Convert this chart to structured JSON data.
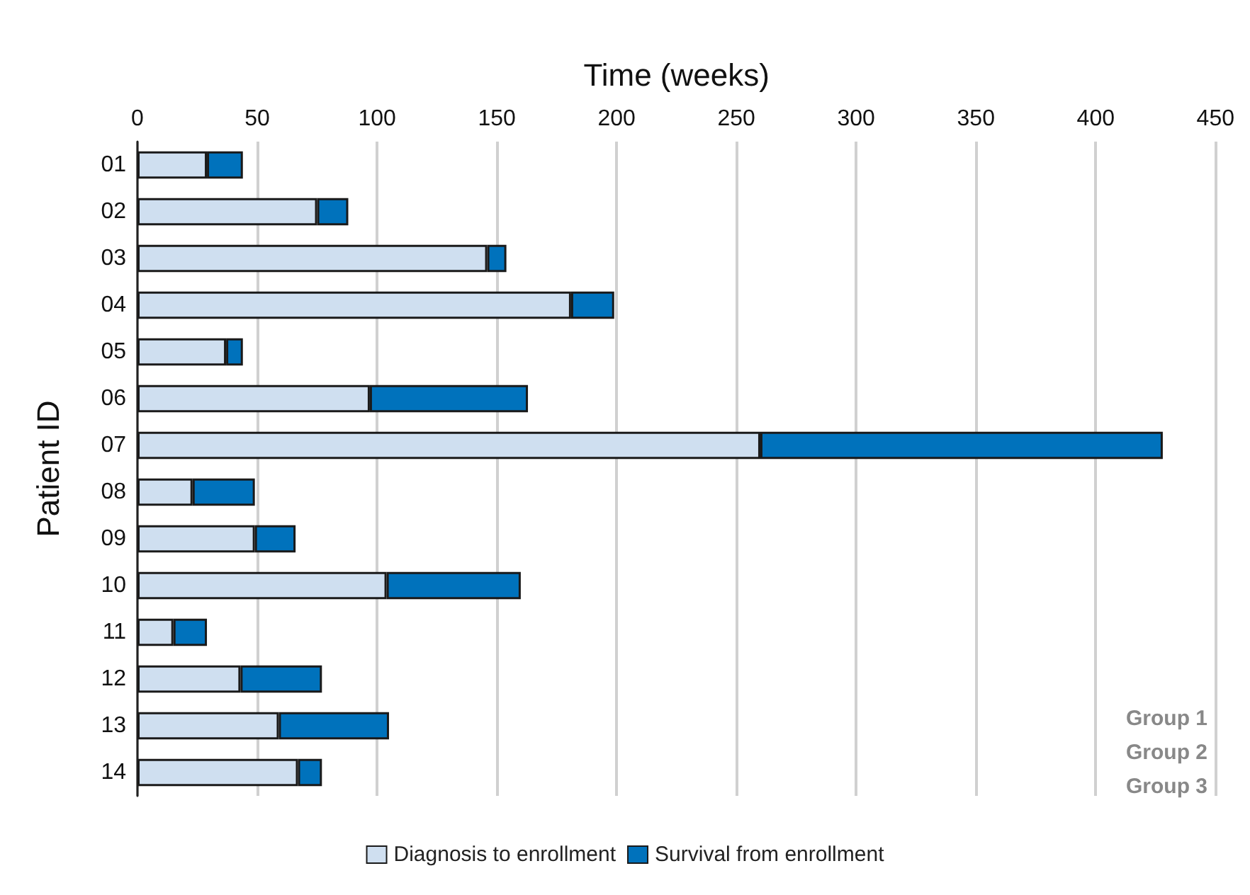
{
  "chart_data": {
    "type": "bar",
    "orientation": "horizontal",
    "stacked": true,
    "xlabel": "Time (weeks)",
    "ylabel": "Patient ID",
    "categories": [
      "01",
      "02",
      "03",
      "04",
      "05",
      "06",
      "07",
      "08",
      "09",
      "10",
      "11",
      "12",
      "13",
      "14"
    ],
    "series": [
      {
        "name": "Diagnosis to enrollment",
        "color": "#cfdff0",
        "values": [
          29,
          75,
          146,
          181,
          37,
          97,
          260,
          23,
          49,
          104,
          15,
          43,
          59,
          67
        ]
      },
      {
        "name": "Survival from enrollment",
        "color": "#0072bc",
        "values": [
          15,
          13,
          8,
          18,
          7,
          66,
          168,
          26,
          17,
          56,
          14,
          34,
          46,
          10
        ]
      }
    ],
    "xlim": [
      0,
      450
    ],
    "xticks": [
      0,
      50,
      100,
      150,
      200,
      250,
      300,
      350,
      400,
      450
    ],
    "grid": "x",
    "legend": "bottom",
    "annotations": [
      "Group 1",
      "Group 2",
      "Group 3"
    ]
  }
}
